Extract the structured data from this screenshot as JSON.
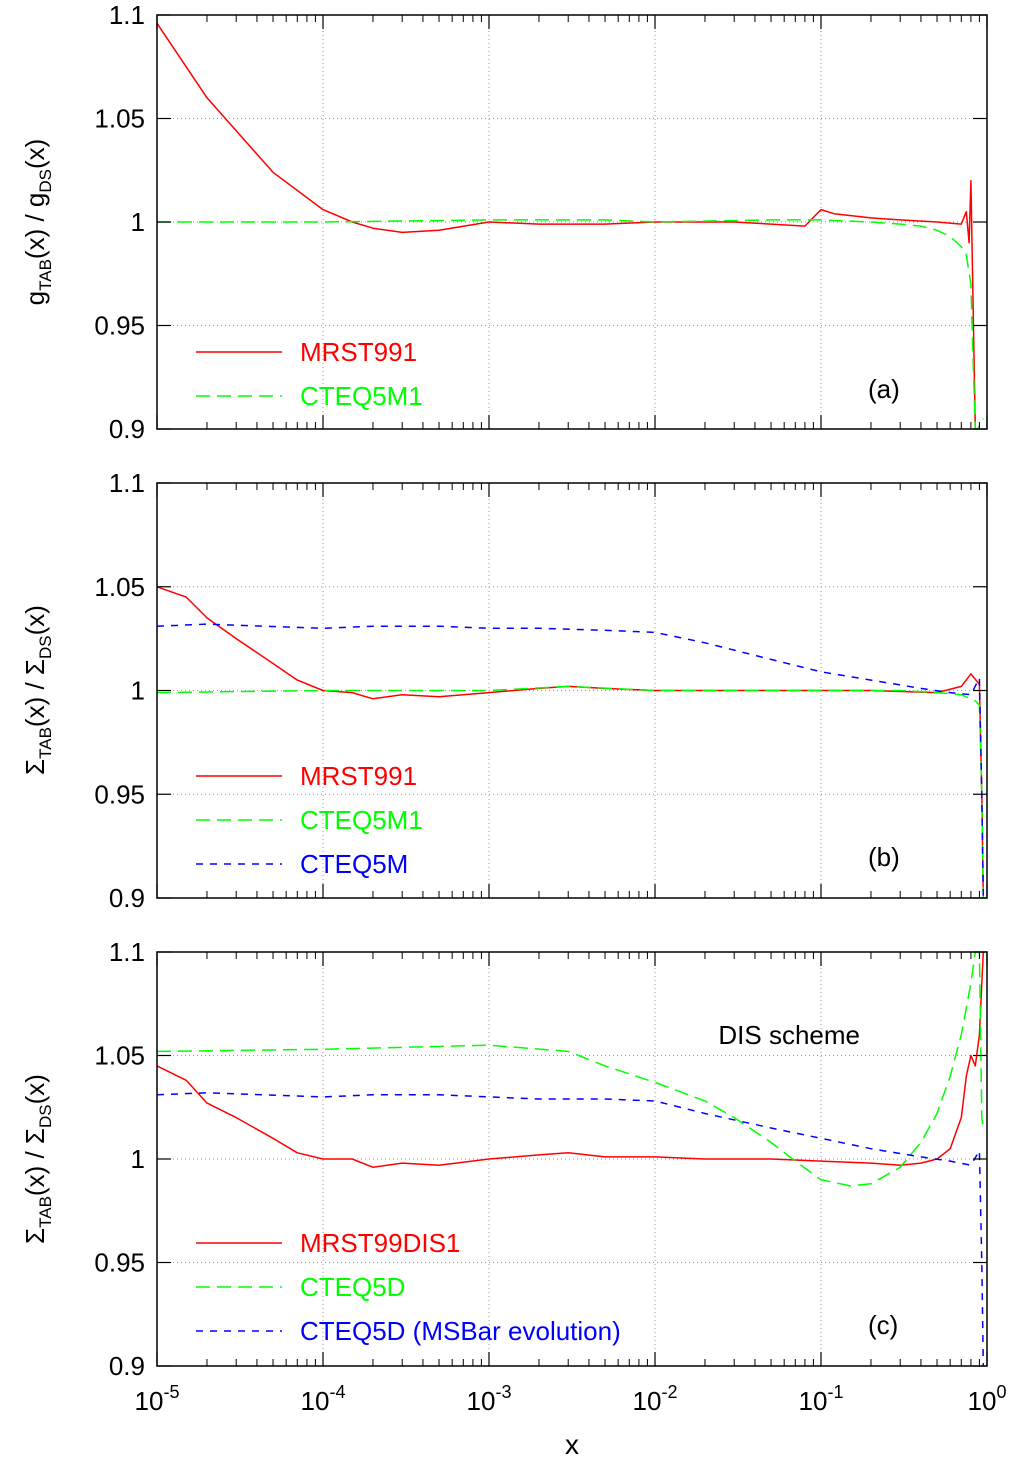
{
  "chart_data": [
    {
      "type": "line",
      "panel": "(a)",
      "ylabel": {
        "main": "g",
        "sub1": "TAB",
        "mid": "(x) / g",
        "sub2": "DS",
        "end": "(x)"
      },
      "xscale": "log",
      "xlim": [
        1e-05,
        1
      ],
      "ylim": [
        0.9,
        1.1
      ],
      "yticks": [
        "0.9",
        "0.95",
        "1",
        "1.05",
        "1.1"
      ],
      "grid": true,
      "legend_placement": "bottom-left",
      "series": [
        {
          "name": "MRST991",
          "color": "#ff0000",
          "dash": "solid",
          "x": [
            1e-05,
            2e-05,
            5e-05,
            0.0001,
            0.00015,
            0.0002,
            0.0003,
            0.0005,
            0.001,
            0.002,
            0.005,
            0.01,
            0.03,
            0.05,
            0.08,
            0.1,
            0.12,
            0.2,
            0.3,
            0.5,
            0.7,
            0.75,
            0.78,
            0.8,
            0.85
          ],
          "y": [
            1.096,
            1.06,
            1.024,
            1.006,
            1.0,
            0.997,
            0.995,
            0.996,
            1.0,
            0.999,
            0.999,
            1.0,
            1.0,
            0.999,
            0.998,
            1.006,
            1.004,
            1.002,
            1.001,
            1.0,
            0.999,
            1.005,
            0.99,
            1.02,
            0.9
          ]
        },
        {
          "name": "CTEQ5M1",
          "color": "#00ff00",
          "dash": "long",
          "x": [
            1e-05,
            0.0001,
            0.001,
            0.005,
            0.01,
            0.05,
            0.1,
            0.2,
            0.3,
            0.4,
            0.5,
            0.6,
            0.7,
            0.75,
            0.8,
            0.82,
            0.85,
            0.88,
            0.95
          ],
          "y": [
            1.0,
            1.0,
            1.001,
            1.001,
            1.0,
            1.001,
            1.001,
            1.0,
            0.999,
            0.998,
            0.996,
            0.993,
            0.988,
            0.984,
            0.97,
            0.94,
            0.9,
            0.9,
            0.905
          ]
        }
      ],
      "annotations": []
    },
    {
      "type": "line",
      "panel": "(b)",
      "ylabel": {
        "main": "Σ",
        "sub1": "TAB",
        "mid": "(x) / Σ",
        "sub2": "DS",
        "end": "(x)"
      },
      "xscale": "log",
      "xlim": [
        1e-05,
        1
      ],
      "ylim": [
        0.9,
        1.1
      ],
      "yticks": [
        "0.9",
        "0.95",
        "1",
        "1.05",
        "1.1"
      ],
      "grid": true,
      "legend_placement": "bottom-left",
      "series": [
        {
          "name": "MRST991",
          "color": "#ff0000",
          "dash": "solid",
          "x": [
            1e-05,
            1.5e-05,
            2e-05,
            3e-05,
            5e-05,
            7e-05,
            0.0001,
            0.00015,
            0.0002,
            0.0003,
            0.0005,
            0.001,
            0.002,
            0.003,
            0.005,
            0.01,
            0.02,
            0.05,
            0.1,
            0.2,
            0.5,
            0.7,
            0.8,
            0.9,
            0.93,
            0.95
          ],
          "y": [
            1.05,
            1.045,
            1.035,
            1.025,
            1.013,
            1.005,
            1.0,
            0.999,
            0.996,
            0.998,
            0.997,
            0.999,
            1.001,
            1.002,
            1.001,
            1.0,
            1.0,
            1.0,
            1.0,
            1.0,
            0.999,
            1.002,
            1.008,
            1.003,
            0.95,
            0.9
          ]
        },
        {
          "name": "CTEQ5M1",
          "color": "#00ff00",
          "dash": "long",
          "x": [
            1e-05,
            0.0001,
            0.001,
            0.003,
            0.01,
            0.05,
            0.1,
            0.3,
            0.5,
            0.7,
            0.85,
            0.9,
            0.93,
            0.95
          ],
          "y": [
            0.999,
            1.0,
            1.0,
            1.002,
            1.0,
            1.0,
            1.0,
            1.0,
            0.999,
            0.998,
            0.995,
            0.993,
            0.95,
            0.9
          ]
        },
        {
          "name": "CTEQ5M",
          "color": "#0000ff",
          "dash": "short",
          "x": [
            1e-05,
            2e-05,
            0.0001,
            0.0002,
            0.0005,
            0.001,
            0.002,
            0.005,
            0.01,
            0.02,
            0.05,
            0.1,
            0.2,
            0.4,
            0.6,
            0.8,
            0.9,
            0.93,
            0.95
          ],
          "y": [
            1.031,
            1.032,
            1.03,
            1.031,
            1.031,
            1.03,
            1.03,
            1.029,
            1.028,
            1.023,
            1.015,
            1.009,
            1.005,
            1.001,
            0.999,
            0.998,
            1.006,
            0.95,
            0.9
          ]
        }
      ],
      "annotations": []
    },
    {
      "type": "line",
      "panel": "(c)",
      "ylabel": {
        "main": "Σ",
        "sub1": "TAB",
        "mid": "(x) / Σ",
        "sub2": "DS",
        "end": "(x)"
      },
      "xlabel": "x",
      "xscale": "log",
      "xlim": [
        1e-05,
        1
      ],
      "ylim": [
        0.9,
        1.1
      ],
      "xticks": [
        {
          "base": "10",
          "exp": "-5"
        },
        {
          "base": "10",
          "exp": "-4"
        },
        {
          "base": "10",
          "exp": "-3"
        },
        {
          "base": "10",
          "exp": "-2"
        },
        {
          "base": "10",
          "exp": "-1"
        },
        {
          "base": "10",
          "exp": "0"
        }
      ],
      "yticks": [
        "0.9",
        "0.95",
        "1",
        "1.05",
        "1.1"
      ],
      "grid": true,
      "legend_placement": "bottom-left",
      "series": [
        {
          "name": "MRST99DIS1",
          "color": "#ff0000",
          "dash": "solid",
          "x": [
            1e-05,
            1.5e-05,
            2e-05,
            3e-05,
            5e-05,
            7e-05,
            0.0001,
            0.00015,
            0.0002,
            0.0003,
            0.0005,
            0.001,
            0.002,
            0.003,
            0.005,
            0.01,
            0.02,
            0.05,
            0.1,
            0.2,
            0.3,
            0.4,
            0.5,
            0.6,
            0.7,
            0.75,
            0.8,
            0.85,
            0.9,
            0.95
          ],
          "y": [
            1.045,
            1.038,
            1.027,
            1.02,
            1.01,
            1.003,
            1.0,
            1.0,
            0.996,
            0.998,
            0.997,
            1.0,
            1.002,
            1.003,
            1.001,
            1.001,
            1.0,
            1.0,
            0.999,
            0.998,
            0.997,
            0.998,
            1.0,
            1.005,
            1.02,
            1.04,
            1.05,
            1.045,
            1.06,
            1.1
          ]
        },
        {
          "name": "CTEQ5D",
          "color": "#00ff00",
          "dash": "long",
          "x": [
            1e-05,
            0.0001,
            0.001,
            0.003,
            0.005,
            0.01,
            0.02,
            0.03,
            0.05,
            0.07,
            0.1,
            0.15,
            0.2,
            0.3,
            0.4,
            0.5,
            0.6,
            0.7,
            0.8,
            0.85,
            0.9,
            0.93,
            0.95
          ],
          "y": [
            1.052,
            1.053,
            1.055,
            1.052,
            1.045,
            1.037,
            1.028,
            1.02,
            1.008,
            0.999,
            0.99,
            0.987,
            0.988,
            0.996,
            1.008,
            1.022,
            1.04,
            1.06,
            1.085,
            1.1,
            1.1,
            1.02,
            1.015
          ]
        },
        {
          "name": "CTEQ5D (MSBar evolution)",
          "color": "#0000ff",
          "dash": "short",
          "x": [
            1e-05,
            2e-05,
            0.0001,
            0.0002,
            0.0005,
            0.001,
            0.002,
            0.005,
            0.01,
            0.02,
            0.05,
            0.1,
            0.2,
            0.4,
            0.6,
            0.8,
            0.9,
            0.93,
            0.95
          ],
          "y": [
            1.031,
            1.032,
            1.03,
            1.031,
            1.031,
            1.03,
            1.029,
            1.029,
            1.028,
            1.022,
            1.015,
            1.01,
            1.005,
            1.001,
            0.999,
            0.997,
            1.004,
            0.95,
            0.9
          ]
        }
      ],
      "annotations": [
        {
          "text": "DIS scheme",
          "x": 0.1,
          "y": 1.077
        }
      ]
    }
  ]
}
